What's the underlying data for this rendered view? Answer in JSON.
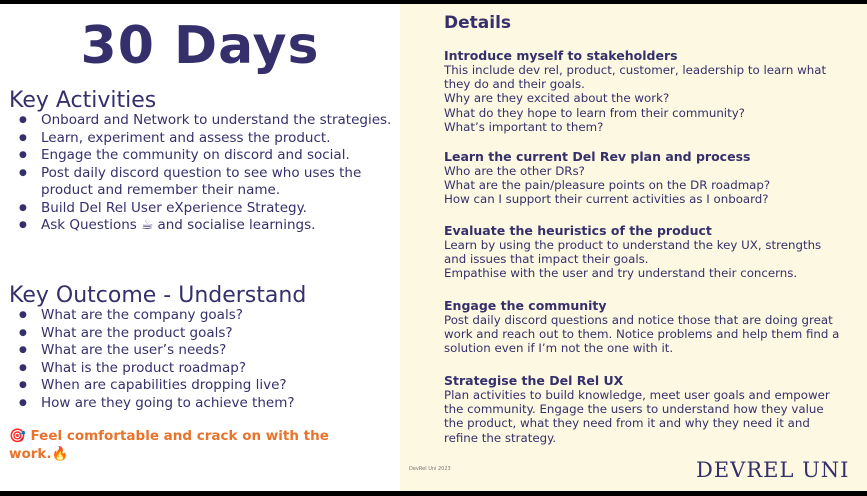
{
  "left": {
    "title": "30 Days",
    "activities_heading": "Key Activities",
    "activities": [
      "Onboard and Network to understand the strategies.",
      "Learn, experiment and assess the product.",
      "Engage the community on discord and social.",
      "Post daily discord question to see who uses the product and remember their name.",
      "Build Del Rel User eXperience Strategy.",
      "Ask Questions ☕ and socialise learnings."
    ],
    "outcome_heading": "Key Outcome - Understand",
    "outcomes": [
      "What are the company goals?",
      "What are the product goals?",
      "What are the user’s needs?",
      "What is the product roadmap?",
      "When are capabilities dropping live?",
      "How are they going to achieve them?"
    ],
    "cta": "🎯 Feel comfortable and crack on with the work.🔥"
  },
  "right": {
    "title": "Details",
    "sections": [
      {
        "heading": "Introduce myself to stakeholders",
        "lines": [
          "This include dev rel, product, customer, leadership to learn what they do and their goals.",
          "Why are they excited about the work?",
          "What do they hope to learn from their community?",
          "What’s important to them?"
        ]
      },
      {
        "heading": "Learn the current Del Rev plan and process",
        "lines": [
          "Who are the other DRs?",
          "What are the pain/pleasure points on the DR roadmap?",
          "How can I support their current activities as I onboard?"
        ]
      },
      {
        "heading": "Evaluate the heuristics of the product",
        "lines": [
          "Learn by using the product to understand the key UX, strengths and issues that impact their goals.",
          "Empathise with the user and try understand their concerns."
        ]
      },
      {
        "heading": "Engage the community",
        "lines": [
          "Post daily discord questions and notice those that are doing great work and reach out to them.  Notice problems and help them find a solution even if I’m not the one with it."
        ]
      },
      {
        "heading": "Strategise the Del Rel UX",
        "lines": [
          "Plan activities to build knowledge, meet user goals and empower the community.  Engage the users to understand how they value the product, what they need from it and why they need it and refine the strategy."
        ]
      }
    ],
    "footnote": "DevRel Uni 2023",
    "logo": "DEVREL UNI"
  }
}
